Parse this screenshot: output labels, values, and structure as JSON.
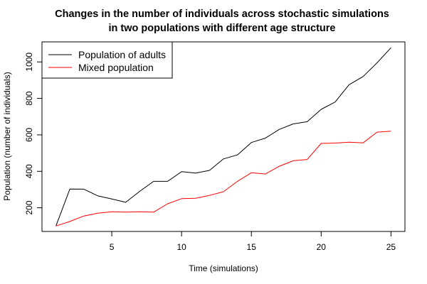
{
  "chart_data": {
    "type": "line",
    "title": "Changes in the number of individuals across stochastic simulations",
    "subtitle": "in two populations with different age structure",
    "xlabel": "Time (simulations)",
    "ylabel": "Population (number of individuals)",
    "xlim": [
      0,
      26
    ],
    "ylim": [
      70,
      1110
    ],
    "xticks": [
      5,
      10,
      15,
      20,
      25
    ],
    "yticks": [
      200,
      400,
      600,
      800,
      1000
    ],
    "grid": false,
    "legend_position": "top-left",
    "x": [
      1,
      2,
      3,
      4,
      5,
      6,
      7,
      8,
      9,
      10,
      11,
      12,
      13,
      14,
      15,
      16,
      17,
      18,
      19,
      20,
      21,
      22,
      23,
      24,
      25
    ],
    "series": [
      {
        "name": "Population of adults",
        "color": "#000000",
        "values": [
          100,
          303,
          302,
          265,
          248,
          230,
          290,
          345,
          345,
          398,
          390,
          405,
          468,
          490,
          558,
          582,
          630,
          660,
          672,
          740,
          780,
          875,
          920,
          995,
          1078
        ]
      },
      {
        "name": "Mixed population",
        "color": "#ff0000",
        "values": [
          100,
          125,
          155,
          170,
          178,
          176,
          178,
          176,
          222,
          250,
          252,
          268,
          288,
          345,
          392,
          385,
          428,
          458,
          465,
          553,
          555,
          560,
          556,
          615,
          620
        ]
      }
    ]
  }
}
